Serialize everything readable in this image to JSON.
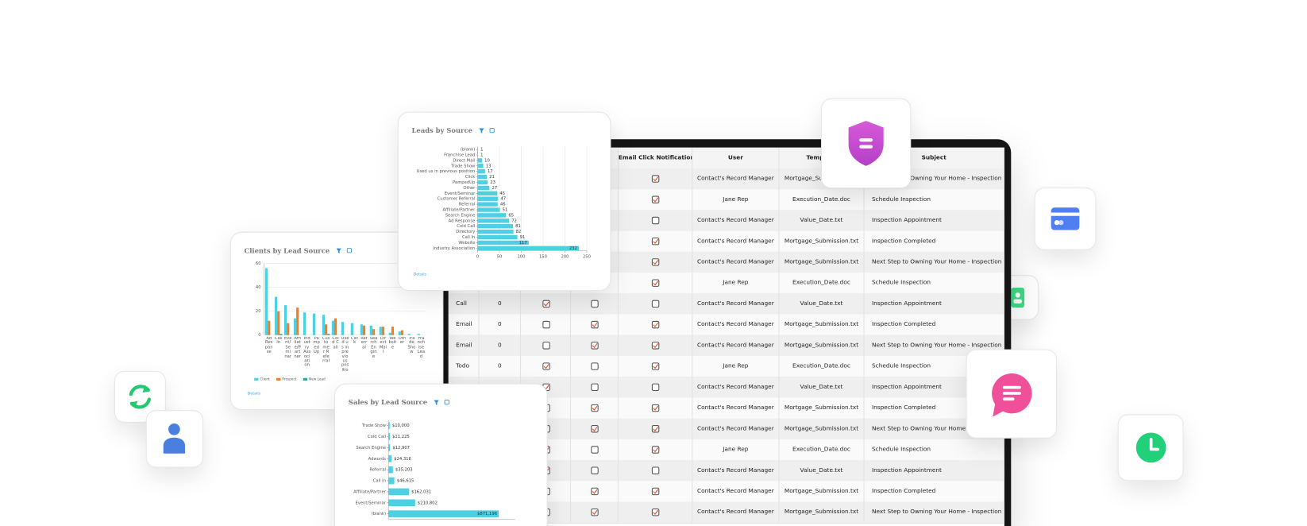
{
  "chart_data": [
    {
      "type": "bar",
      "horizontal": true,
      "title": "Leads by Source",
      "link_text": "Details",
      "grid": true,
      "color": "#4dd0e1",
      "categories": [
        "(blank)",
        "Franchise Lead",
        "Direct Mail",
        "Trade Show",
        "Used us in previous position",
        "Click",
        "PampedUp",
        "Other",
        "Event/Seminar",
        "Customer Referral",
        "Referral",
        "Affiliate/Partner",
        "Search Engine",
        "Ad Response",
        "Cold Call",
        "Directory",
        "Call In",
        "Website",
        "Industry Association"
      ],
      "values": [
        1,
        1,
        10,
        13,
        17,
        21,
        23,
        27,
        45,
        47,
        46,
        51,
        65,
        72,
        81,
        82,
        91,
        117,
        232
      ],
      "xlim": [
        0,
        250
      ],
      "xticks": [
        0,
        50,
        100,
        150,
        200,
        250
      ]
    },
    {
      "type": "bar",
      "horizontal": false,
      "title": "Clients by Lead Source",
      "link_text": "Details",
      "grid": true,
      "legend": "bottom",
      "categories": [
        "Ad Response",
        "Call In",
        "Event/Seminar",
        "Affiliate/Partner",
        "Industry Association",
        "PampedUp",
        "Customer Referral",
        "Cold Call",
        "Used us in previous position",
        "Click",
        "Referral",
        "Search Engine",
        "Direct Mail",
        "Website",
        "Other",
        "Trade Show",
        "Franchise Lead"
      ],
      "series": [
        {
          "name": "Client",
          "color": "#4dd0e1",
          "values": [
            56,
            32,
            25,
            14,
            19,
            18,
            17,
            12,
            11,
            10,
            9,
            8,
            7,
            2,
            3,
            1,
            1
          ]
        },
        {
          "name": "Prospect",
          "color": "#f57c20",
          "values": [
            12,
            20,
            10,
            23,
            0,
            0,
            9,
            14,
            0,
            0,
            8,
            5,
            7,
            7,
            4,
            0,
            0
          ]
        },
        {
          "name": "New Lead",
          "color": "#26a69a",
          "values": [
            0,
            1,
            0,
            0,
            0,
            0,
            1,
            0,
            0,
            0,
            0,
            0,
            0,
            0,
            0,
            0,
            0
          ]
        }
      ],
      "ylim": [
        0,
        60
      ],
      "yticks": [
        0,
        20,
        40,
        60
      ]
    },
    {
      "type": "bar",
      "horizontal": true,
      "title": "Sales by Lead Source",
      "color": "#4dd0e1",
      "categories": [
        "Trade Show",
        "Cold Call",
        "Search Engine",
        "Adwords",
        "Referral",
        "Call In",
        "Affiliate/Partner",
        "Event/Seminar",
        "(blank)"
      ],
      "values": [
        10000,
        11225,
        12907,
        24316,
        35203,
        46615,
        162031,
        210802,
        871196
      ],
      "value_labels": [
        "$10,000",
        "$11,225",
        "$12,907",
        "$24,316",
        "$35,203",
        "$46,615",
        "$162,031",
        "$210,802",
        "$871,196"
      ],
      "xlim": [
        0,
        1000000
      ]
    }
  ],
  "table": {
    "headers": [
      null,
      null,
      null,
      null,
      "Email Click Notification",
      "User",
      "Template",
      "Subject"
    ],
    "rows": [
      [
        null,
        null,
        null,
        null,
        true,
        "Contact's Record Manager",
        "Mortgage_Submission.txt",
        "Next Step to Owning Your Home - Inspection"
      ],
      [
        null,
        null,
        null,
        null,
        true,
        "Jane Rep",
        "Execution_Date.doc",
        "Schedule Inspection"
      ],
      [
        null,
        null,
        null,
        null,
        false,
        "Contact's Record Manager",
        "Value_Date.txt",
        "Inspection Appointment"
      ],
      [
        null,
        null,
        null,
        null,
        true,
        "Contact's Record Manager",
        "Mortgage_Submission.txt",
        "Inspection Completed"
      ],
      [
        null,
        null,
        null,
        null,
        true,
        "Contact's Record Manager",
        "Mortgage_Submission.txt",
        "Next Step to Owning Your Home - Inspection"
      ],
      [
        null,
        null,
        null,
        null,
        true,
        "Jane Rep",
        "Execution_Date.doc",
        "Schedule Inspection"
      ],
      [
        "Call",
        0,
        true,
        false,
        false,
        "Contact's Record Manager",
        "Value_Date.txt",
        "Inspection Appointment"
      ],
      [
        "Email",
        0,
        false,
        true,
        true,
        "Contact's Record Manager",
        "Mortgage_Submission.txt",
        "Inspection Completed"
      ],
      [
        "Email",
        0,
        false,
        true,
        true,
        "Contact's Record Manager",
        "Mortgage_Submission.txt",
        "Next Step to Owning Your Home - Inspection"
      ],
      [
        "Todo",
        0,
        true,
        false,
        true,
        "Jane Rep",
        "Execution_Date.doc",
        "Schedule Inspection"
      ],
      [
        null,
        null,
        true,
        false,
        false,
        "Contact's Record Manager",
        "Value_Date.txt",
        "Inspection Appointment"
      ],
      [
        null,
        null,
        false,
        true,
        true,
        "Contact's Record Manager",
        "Mortgage_Submission.txt",
        "Inspection Completed"
      ],
      [
        null,
        null,
        false,
        true,
        true,
        "Contact's Record Manager",
        "Mortgage_Submission.txt",
        "Next Step to Owning Your Home - Inspection"
      ],
      [
        null,
        null,
        true,
        false,
        true,
        "Jane Rep",
        "Execution_Date.doc",
        "Schedule Inspection"
      ],
      [
        null,
        null,
        true,
        false,
        false,
        "Contact's Record Manager",
        "Value_Date.txt",
        "Inspection Appointment"
      ],
      [
        null,
        null,
        false,
        true,
        true,
        "Contact's Record Manager",
        "Mortgage_Submission.txt",
        "Inspection Completed"
      ],
      [
        null,
        null,
        false,
        true,
        true,
        "Contact's Record Manager",
        "Mortgage_Submission.txt",
        "Next Step to Owning Your Home - Inspection"
      ]
    ]
  }
}
